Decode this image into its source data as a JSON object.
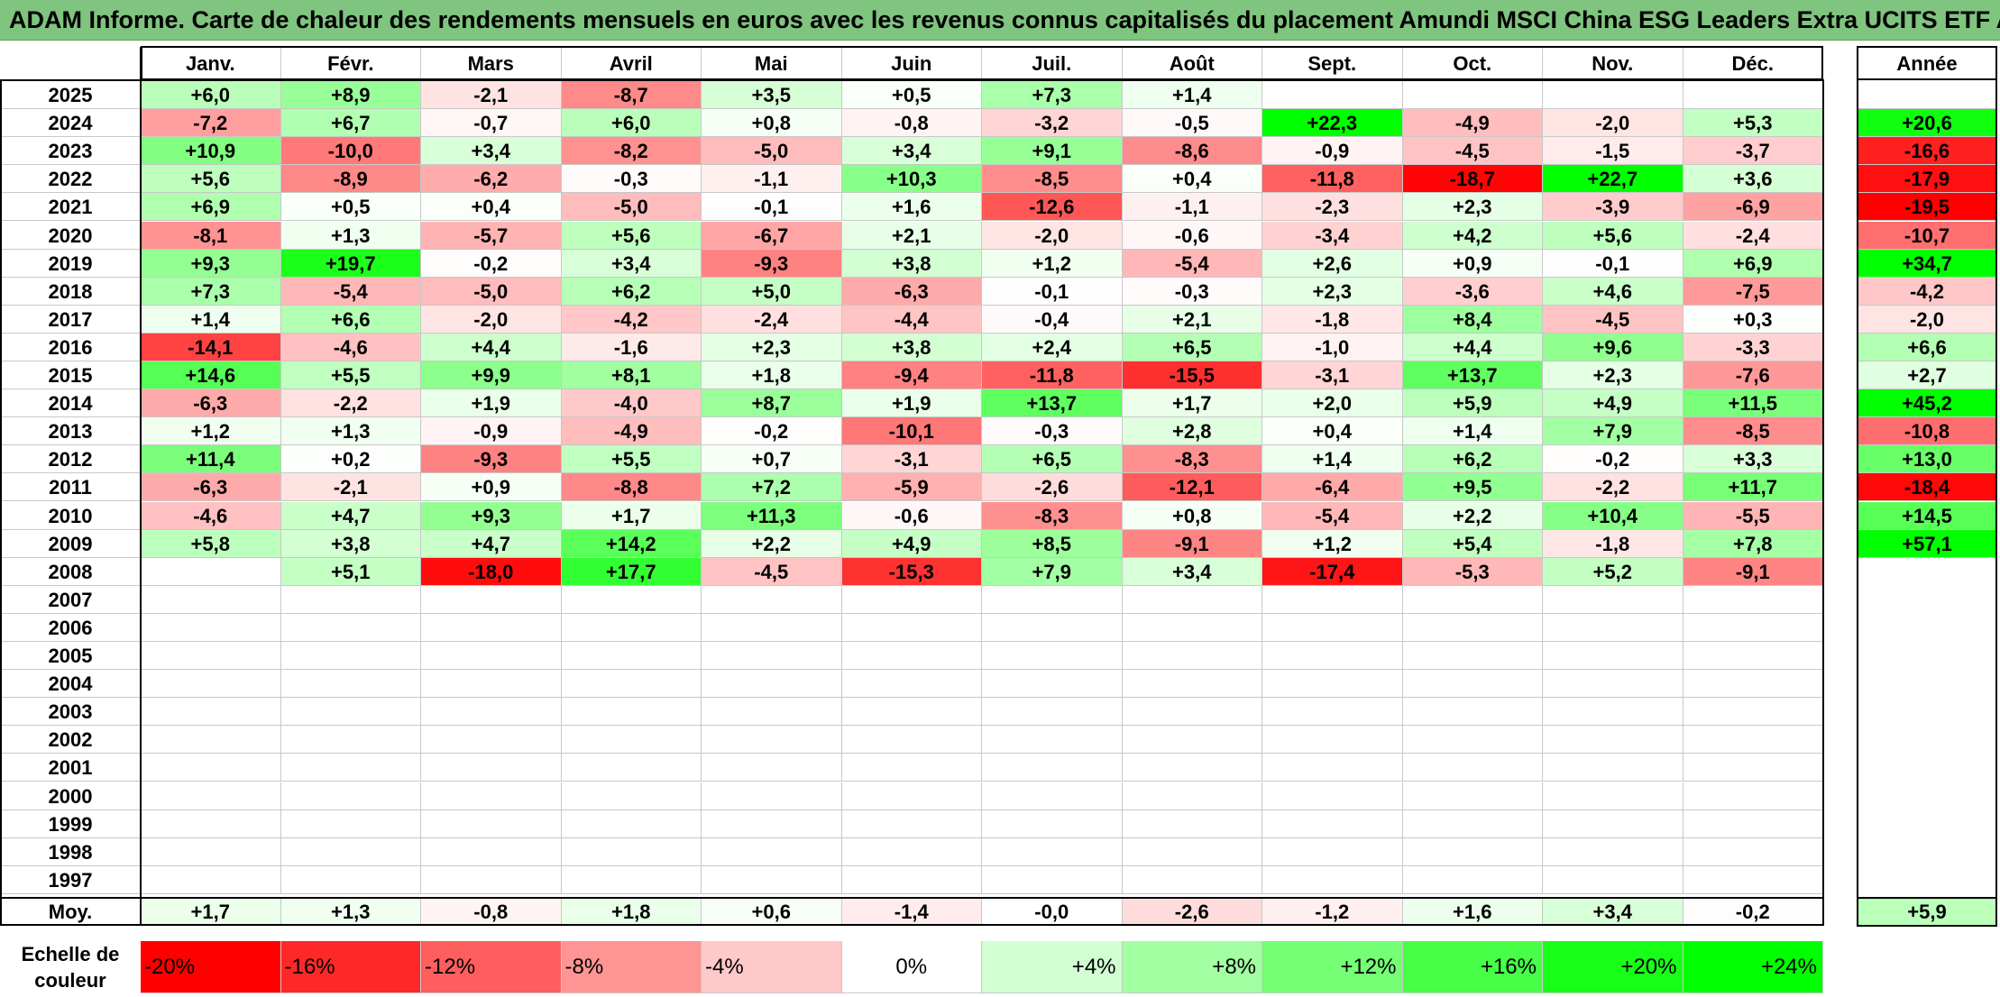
{
  "title": "ADAM Informe. Carte de chaleur des rendements mensuels en euros avec les revenus connus capitalisés du placement Amundi MSCI China ESG Leaders Extra UCITS ETF Acc",
  "chart_data": {
    "type": "heatmap",
    "title": "ADAM Informe. Carte de chaleur des rendements mensuels en euros avec les revenus connus capitalisés du placement Amundi MSCI China ESG Leaders Extra UCITS ETF Acc",
    "columns": [
      "Janv.",
      "Févr.",
      "Mars",
      "Avril",
      "Mai",
      "Juin",
      "Juil.",
      "Août",
      "Sept.",
      "Oct.",
      "Nov.",
      "Déc."
    ],
    "year_column_label": "Année",
    "rows": [
      {
        "year": "2025",
        "months": [
          "+6,0",
          "+8,9",
          "-2,1",
          "-8,7",
          "+3,5",
          "+0,5",
          "+7,3",
          "+1,4",
          "",
          "",
          "",
          ""
        ],
        "annual": ""
      },
      {
        "year": "2024",
        "months": [
          "-7,2",
          "+6,7",
          "-0,7",
          "+6,0",
          "+0,8",
          "-0,8",
          "-3,2",
          "-0,5",
          "+22,3",
          "-4,9",
          "-2,0",
          "+5,3"
        ],
        "annual": "+20,6"
      },
      {
        "year": "2023",
        "months": [
          "+10,9",
          "-10,0",
          "+3,4",
          "-8,2",
          "-5,0",
          "+3,4",
          "+9,1",
          "-8,6",
          "-0,9",
          "-4,5",
          "-1,5",
          "-3,7"
        ],
        "annual": "-16,6"
      },
      {
        "year": "2022",
        "months": [
          "+5,6",
          "-8,9",
          "-6,2",
          "-0,3",
          "-1,1",
          "+10,3",
          "-8,5",
          "+0,4",
          "-11,8",
          "-18,7",
          "+22,7",
          "+3,6"
        ],
        "annual": "-17,9"
      },
      {
        "year": "2021",
        "months": [
          "+6,9",
          "+0,5",
          "+0,4",
          "-5,0",
          "-0,1",
          "+1,6",
          "-12,6",
          "-1,1",
          "-2,3",
          "+2,3",
          "-3,9",
          "-6,9"
        ],
        "annual": "-19,5"
      },
      {
        "year": "2020",
        "months": [
          "-8,1",
          "+1,3",
          "-5,7",
          "+5,6",
          "-6,7",
          "+2,1",
          "-2,0",
          "-0,6",
          "-3,4",
          "+4,2",
          "+5,6",
          "-2,4"
        ],
        "annual": "-10,7"
      },
      {
        "year": "2019",
        "months": [
          "+9,3",
          "+19,7",
          "-0,2",
          "+3,4",
          "-9,3",
          "+3,8",
          "+1,2",
          "-5,4",
          "+2,6",
          "+0,9",
          "-0,1",
          "+6,9"
        ],
        "annual": "+34,7"
      },
      {
        "year": "2018",
        "months": [
          "+7,3",
          "-5,4",
          "-5,0",
          "+6,2",
          "+5,0",
          "-6,3",
          "-0,1",
          "-0,3",
          "+2,3",
          "-3,6",
          "+4,6",
          "-7,5"
        ],
        "annual": "-4,2"
      },
      {
        "year": "2017",
        "months": [
          "+1,4",
          "+6,6",
          "-2,0",
          "-4,2",
          "-2,4",
          "-4,4",
          "-0,4",
          "+2,1",
          "-1,8",
          "+8,4",
          "-4,5",
          "+0,3"
        ],
        "annual": "-2,0"
      },
      {
        "year": "2016",
        "months": [
          "-14,1",
          "-4,6",
          "+4,4",
          "-1,6",
          "+2,3",
          "+3,8",
          "+2,4",
          "+6,5",
          "-1,0",
          "+4,4",
          "+9,6",
          "-3,3"
        ],
        "annual": "+6,6"
      },
      {
        "year": "2015",
        "months": [
          "+14,6",
          "+5,5",
          "+9,9",
          "+8,1",
          "+1,8",
          "-9,4",
          "-11,8",
          "-15,5",
          "-3,1",
          "+13,7",
          "+2,3",
          "-7,6"
        ],
        "annual": "+2,7"
      },
      {
        "year": "2014",
        "months": [
          "-6,3",
          "-2,2",
          "+1,9",
          "-4,0",
          "+8,7",
          "+1,9",
          "+13,7",
          "+1,7",
          "+2,0",
          "+5,9",
          "+4,9",
          "+11,5"
        ],
        "annual": "+45,2"
      },
      {
        "year": "2013",
        "months": [
          "+1,2",
          "+1,3",
          "-0,9",
          "-4,9",
          "-0,2",
          "-10,1",
          "-0,3",
          "+2,8",
          "+0,4",
          "+1,4",
          "+7,9",
          "-8,5"
        ],
        "annual": "-10,8"
      },
      {
        "year": "2012",
        "months": [
          "+11,4",
          "+0,2",
          "-9,3",
          "+5,5",
          "+0,7",
          "-3,1",
          "+6,5",
          "-8,3",
          "+1,4",
          "+6,2",
          "-0,2",
          "+3,3"
        ],
        "annual": "+13,0"
      },
      {
        "year": "2011",
        "months": [
          "-6,3",
          "-2,1",
          "+0,9",
          "-8,8",
          "+7,2",
          "-5,9",
          "-2,6",
          "-12,1",
          "-6,4",
          "+9,5",
          "-2,2",
          "+11,7"
        ],
        "annual": "-18,4"
      },
      {
        "year": "2010",
        "months": [
          "-4,6",
          "+4,7",
          "+9,3",
          "+1,7",
          "+11,3",
          "-0,6",
          "-8,3",
          "+0,8",
          "-5,4",
          "+2,2",
          "+10,4",
          "-5,5"
        ],
        "annual": "+14,5"
      },
      {
        "year": "2009",
        "months": [
          "+5,8",
          "+3,8",
          "+4,7",
          "+14,2",
          "+2,2",
          "+4,9",
          "+8,5",
          "-9,1",
          "+1,2",
          "+5,4",
          "-1,8",
          "+7,8"
        ],
        "annual": "+57,1"
      },
      {
        "year": "2008",
        "months": [
          "",
          "+5,1",
          "-18,0",
          "+17,7",
          "-4,5",
          "-15,3",
          "+7,9",
          "+3,4",
          "-17,4",
          "-5,3",
          "+5,2",
          "-9,1"
        ],
        "annual": ""
      },
      {
        "year": "2007",
        "months": [
          "",
          "",
          "",
          "",
          "",
          "",
          "",
          "",
          "",
          "",
          "",
          ""
        ],
        "annual": ""
      },
      {
        "year": "2006",
        "months": [
          "",
          "",
          "",
          "",
          "",
          "",
          "",
          "",
          "",
          "",
          "",
          ""
        ],
        "annual": ""
      },
      {
        "year": "2005",
        "months": [
          "",
          "",
          "",
          "",
          "",
          "",
          "",
          "",
          "",
          "",
          "",
          ""
        ],
        "annual": ""
      },
      {
        "year": "2004",
        "months": [
          "",
          "",
          "",
          "",
          "",
          "",
          "",
          "",
          "",
          "",
          "",
          ""
        ],
        "annual": ""
      },
      {
        "year": "2003",
        "months": [
          "",
          "",
          "",
          "",
          "",
          "",
          "",
          "",
          "",
          "",
          "",
          ""
        ],
        "annual": ""
      },
      {
        "year": "2002",
        "months": [
          "",
          "",
          "",
          "",
          "",
          "",
          "",
          "",
          "",
          "",
          "",
          ""
        ],
        "annual": ""
      },
      {
        "year": "2001",
        "months": [
          "",
          "",
          "",
          "",
          "",
          "",
          "",
          "",
          "",
          "",
          "",
          ""
        ],
        "annual": ""
      },
      {
        "year": "2000",
        "months": [
          "",
          "",
          "",
          "",
          "",
          "",
          "",
          "",
          "",
          "",
          "",
          ""
        ],
        "annual": ""
      },
      {
        "year": "1999",
        "months": [
          "",
          "",
          "",
          "",
          "",
          "",
          "",
          "",
          "",
          "",
          "",
          ""
        ],
        "annual": ""
      },
      {
        "year": "1998",
        "months": [
          "",
          "",
          "",
          "",
          "",
          "",
          "",
          "",
          "",
          "",
          "",
          ""
        ],
        "annual": ""
      },
      {
        "year": "1997",
        "months": [
          "",
          "",
          "",
          "",
          "",
          "",
          "",
          "",
          "",
          "",
          "",
          ""
        ],
        "annual": ""
      }
    ],
    "average": {
      "label": "Moy.",
      "months": [
        "+1,7",
        "+1,3",
        "-0,8",
        "+1,8",
        "+0,6",
        "-1,4",
        "-0,0",
        "-2,6",
        "-1,2",
        "+1,6",
        "+3,4",
        "-0,2"
      ],
      "annual": "+5,9"
    },
    "color_scale": {
      "label": "Echelle de couleur",
      "stops": [
        "-20%",
        "-16%",
        "-12%",
        "-8%",
        "-4%",
        "0%",
        "+4%",
        "+8%",
        "+12%",
        "+16%",
        "+20%",
        "+24%"
      ],
      "stop_values": [
        -20,
        -16,
        -12,
        -8,
        -4,
        0,
        4,
        8,
        12,
        16,
        20,
        24
      ],
      "negative_color": "#ff0000",
      "positive_color": "#00ff00",
      "neutral_color": "#ffffff"
    }
  }
}
